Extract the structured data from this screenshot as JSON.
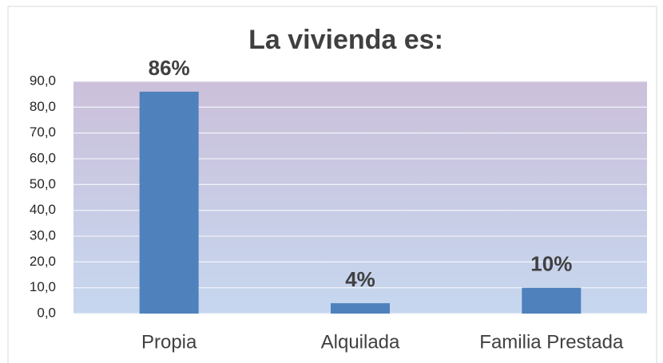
{
  "chart_data": {
    "type": "bar",
    "title": "La vivienda es:",
    "categories": [
      "Propia",
      "Alquilada",
      "Familia Prestada"
    ],
    "values": [
      86,
      4,
      10
    ],
    "value_labels": [
      "86%",
      "4%",
      "10%"
    ],
    "color": "#4f81bd",
    "ylim": [
      0,
      90
    ],
    "yticks": [
      {
        "value": 0,
        "label": "0,0"
      },
      {
        "value": 10,
        "label": "10,0"
      },
      {
        "value": 20,
        "label": "20,0"
      },
      {
        "value": 30,
        "label": "30,0"
      },
      {
        "value": 40,
        "label": "40,0"
      },
      {
        "value": 50,
        "label": "50,0"
      },
      {
        "value": 60,
        "label": "60,0"
      },
      {
        "value": 70,
        "label": "70,0"
      },
      {
        "value": 80,
        "label": "80,0"
      },
      {
        "value": 90,
        "label": "90,0"
      }
    ],
    "grid": true
  }
}
